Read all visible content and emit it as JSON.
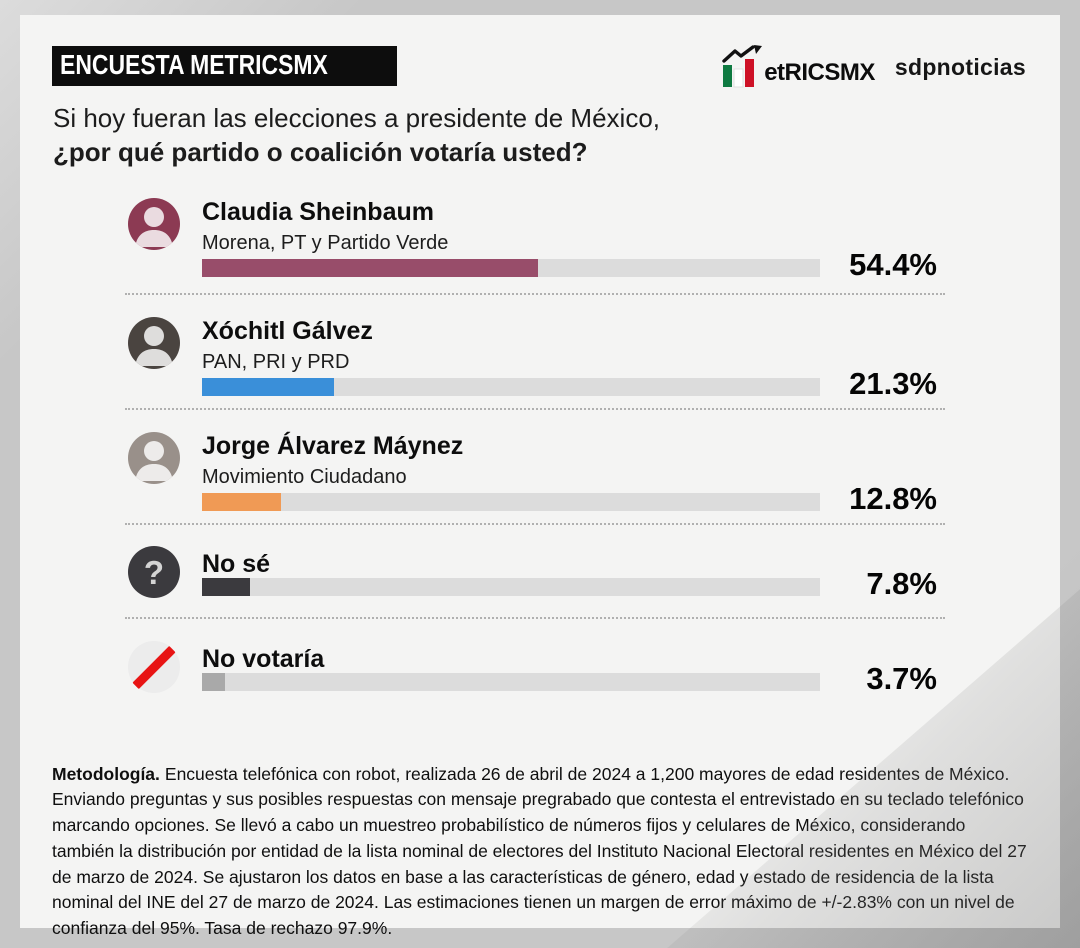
{
  "page": {
    "background": "#c7c7c7",
    "card_background": "#f4f4f3"
  },
  "header": {
    "badge": "ENCUESTA METRICSMX",
    "brand_wordmark": "etRICSMX",
    "brand_partner": "sdpnoticias",
    "question_line1": "Si hoy fueran las elecciones a presidente de México,",
    "question_line2": "¿por qué partido o coalición votaría usted?"
  },
  "chart_data": {
    "type": "bar",
    "orientation": "horizontal",
    "title": "¿por qué partido o coalición votaría usted?",
    "categories": [
      "Claudia Sheinbaum",
      "Xóchitl Gálvez",
      "Jorge Álvarez Máynez",
      "No sé",
      "No votaría"
    ],
    "subtitles": [
      "Morena, PT y Partido Verde",
      "PAN, PRI y PRD",
      "Movimiento Ciudadano",
      "",
      ""
    ],
    "values": [
      54.4,
      21.3,
      12.8,
      7.8,
      3.7
    ],
    "value_labels": [
      "54.4%",
      "21.3%",
      "12.8%",
      "7.8%",
      "3.7%"
    ],
    "bar_colors": [
      "#984D6A",
      "#3A8FD9",
      "#F09A55",
      "#3B3A3E",
      "#A9A9A9"
    ],
    "track_color": "#DCDCDC",
    "xlim": [
      0,
      100
    ],
    "grid": false,
    "legend": false
  },
  "rows": [
    {
      "name": "Claudia Sheinbaum",
      "party": "Morena, PT y Partido Verde",
      "value": 54.4,
      "pct_label": "54.4%",
      "bar_color": "#984D6A",
      "avatar_bg": "#8C3A53"
    },
    {
      "name": "Xóchitl Gálvez",
      "party": "PAN, PRI y PRD",
      "value": 21.3,
      "pct_label": "21.3%",
      "bar_color": "#3A8FD9",
      "avatar_bg": "#4A4440"
    },
    {
      "name": "Jorge Álvarez Máynez",
      "party": "Movimiento Ciudadano",
      "value": 12.8,
      "pct_label": "12.8%",
      "bar_color": "#F09A55",
      "avatar_bg": "#99908A"
    },
    {
      "name": "No sé",
      "party": "",
      "value": 7.8,
      "pct_label": "7.8%",
      "bar_color": "#3B3A3E"
    },
    {
      "name": "No votaría",
      "party": "",
      "value": 3.7,
      "pct_label": "3.7%",
      "bar_color": "#A9A9A9"
    }
  ],
  "icons": {
    "metricsmx_logo": "bar-chart-M-with-up-arrow (green/white/red)",
    "question_glyph": "?",
    "no_vote": "red-diagonal-slash",
    "avatars": "person-photo-placeholder"
  },
  "methodology": {
    "label": "Metodología.",
    "text": "Encuesta telefónica con robot, realizada 26 de abril de 2024 a 1,200 mayores de edad residentes de México. Enviando preguntas y sus posibles respuestas con mensaje pregrabado que contesta el entrevistado en su teclado telefónico marcando opciones. Se llevó a cabo un muestreo probabilístico de números fijos y celulares de México, considerando también la distribución por entidad de la lista nominal de electores del Instituto Nacional Electoral residentes en México del 27 de marzo de 2024. Se ajustaron los datos en base a las características de género, edad y estado de residencia de la lista nominal del INE del 27 de marzo de 2024. Las estimaciones tienen un margen de error máximo de +/-2.83% con un nivel de confianza del 95%. Tasa de rechazo 97.9%."
  }
}
